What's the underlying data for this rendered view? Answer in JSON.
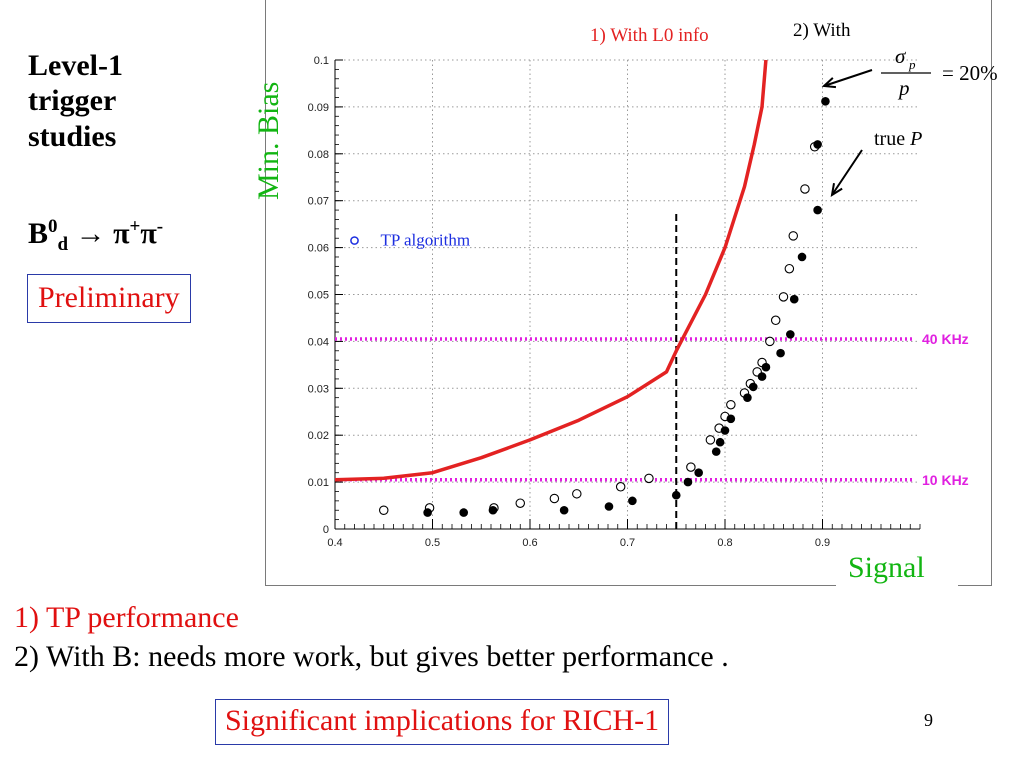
{
  "slide": {
    "left_title_lines": [
      "Level-1",
      "trigger",
      "studies"
    ],
    "decay": {
      "B": "B",
      "sup0": "0",
      "sub_d": "d",
      "arrow": "→",
      "pi1": "π",
      "plus": "+",
      "pi2": "π",
      "minus": "-"
    },
    "preliminary": "Preliminary",
    "note1": "1) TP performance",
    "note2": "2) With B: needs more work, but gives better performance .",
    "implications": "Significant implications for RICH-1",
    "page_number": "9"
  },
  "chart_data": {
    "type": "scatter",
    "xlabel": "Signal",
    "ylabel": "Min. Bias",
    "xlim": [
      0.4,
      1.0
    ],
    "ylim": [
      0,
      0.1
    ],
    "x_ticks": [
      "0.4",
      "0.5",
      "0.6",
      "0.7",
      "0.8",
      "0.9"
    ],
    "y_ticks": [
      "0",
      "0.01",
      "0.02",
      "0.03",
      "0.04",
      "0.05",
      "0.06",
      "0.07",
      "0.08",
      "0.09",
      "0.1"
    ],
    "legend": {
      "label": "TP algorithm",
      "placement": "top-left"
    },
    "series": [
      {
        "name": "1) With L0 info",
        "kind": "line",
        "color": "#e32222",
        "x": [
          0.4,
          0.45,
          0.5,
          0.55,
          0.6,
          0.65,
          0.7,
          0.74,
          0.75,
          0.78,
          0.8,
          0.82,
          0.83,
          0.838,
          0.842
        ],
        "y": [
          0.0105,
          0.0108,
          0.012,
          0.0152,
          0.019,
          0.0232,
          0.0282,
          0.0335,
          0.038,
          0.05,
          0.06,
          0.073,
          0.082,
          0.09,
          0.1
        ]
      },
      {
        "name": "2) With",
        "kind": "open-circles",
        "x": [
          0.45,
          0.497,
          0.563,
          0.59,
          0.625,
          0.648,
          0.693,
          0.722,
          0.765,
          0.785,
          0.794,
          0.8,
          0.806,
          0.82,
          0.826,
          0.833,
          0.838,
          0.846,
          0.852,
          0.86,
          0.866,
          0.87,
          0.882,
          0.892
        ],
        "y": [
          0.004,
          0.0045,
          0.0045,
          0.0055,
          0.0065,
          0.0075,
          0.009,
          0.0108,
          0.0132,
          0.019,
          0.0215,
          0.024,
          0.0265,
          0.029,
          0.031,
          0.0335,
          0.0355,
          0.04,
          0.0445,
          0.0495,
          0.0555,
          0.0625,
          0.0725,
          0.0815
        ]
      },
      {
        "name": "true P",
        "kind": "filled-circles",
        "x": [
          0.495,
          0.532,
          0.562,
          0.635,
          0.681,
          0.705,
          0.75,
          0.762,
          0.773,
          0.791,
          0.795,
          0.8,
          0.806,
          0.823,
          0.829,
          0.838,
          0.842,
          0.857,
          0.867,
          0.871,
          0.879,
          0.895,
          0.895,
          0.903
        ],
        "y": [
          0.0035,
          0.0035,
          0.004,
          0.004,
          0.0048,
          0.006,
          0.0072,
          0.01,
          0.012,
          0.0165,
          0.0185,
          0.021,
          0.0235,
          0.028,
          0.0303,
          0.0325,
          0.0345,
          0.0375,
          0.0415,
          0.049,
          0.058,
          0.068,
          0.082,
          0.0912
        ]
      }
    ],
    "reference_lines": [
      {
        "label": "40 KHz",
        "orientation": "horizontal",
        "y": 0.0405,
        "color": "#e020e0",
        "style": "dotted"
      },
      {
        "label": "10 KHz",
        "orientation": "horizontal",
        "y": 0.0105,
        "color": "#e020e0",
        "style": "dotted"
      },
      {
        "label": "",
        "orientation": "vertical",
        "x": 0.75,
        "y_range": [
          0.0,
          0.0675
        ],
        "color": "#000000",
        "style": "dashed"
      }
    ],
    "annotations": {
      "sigma_label": {
        "sigma": "σ",
        "sub_p": "p",
        "den": "p",
        "value": "= 20%"
      },
      "true_label": {
        "text": "true ",
        "italic": "P"
      }
    },
    "marker_open_color": "#000000",
    "marker_filled_color": "#000000",
    "legend_marker_color": "#1c2ee0"
  }
}
